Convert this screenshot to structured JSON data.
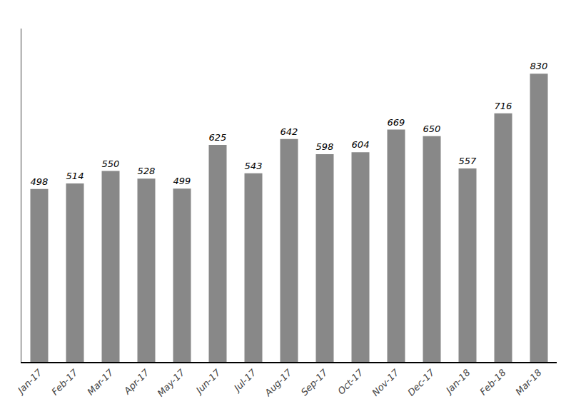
{
  "chart_data": {
    "type": "bar",
    "categories": [
      "Jan-17",
      "Feb-17",
      "Mar-17",
      "Apr-17",
      "May-17",
      "Jun-17",
      "Jul-17",
      "Aug-17",
      "Sep-17",
      "Oct-17",
      "Nov-17",
      "Dec-17",
      "Jan-18",
      "Feb-18",
      "Mar-18"
    ],
    "values": [
      498,
      514,
      550,
      528,
      499,
      625,
      543,
      642,
      598,
      604,
      669,
      650,
      557,
      716,
      830
    ],
    "color": "#888888",
    "ylim": [
      0,
      960
    ],
    "grid": false,
    "data_labels": true,
    "tick_labels": "x"
  }
}
